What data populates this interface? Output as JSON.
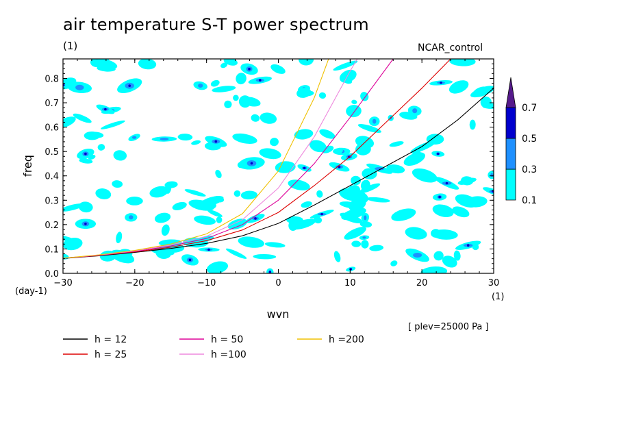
{
  "title": "air temperature S-T power spectrum",
  "units_label": "(1)",
  "dataset_label": "NCAR_control",
  "pressure_label": "[ plev=25000 Pa ]",
  "chart_data": {
    "type": "line",
    "xlabel": "wvn",
    "ylabel": "freq",
    "x_units": "(1)",
    "y_units": "(day-1)",
    "xlim": [
      -30,
      30
    ],
    "ylim": [
      0,
      0.88
    ],
    "x_ticks": [
      -30,
      -20,
      -10,
      0,
      10,
      20,
      30
    ],
    "y_ticks": [
      0.0,
      0.1,
      0.2,
      0.3,
      0.4,
      0.5,
      0.6,
      0.7,
      0.8
    ],
    "series": [
      {
        "name": "h = 12",
        "color": "#000000",
        "x": [
          -30,
          -25,
          -20,
          -15,
          -10,
          -5,
          0,
          5,
          10,
          15,
          20,
          25,
          30
        ],
        "y": [
          0.061,
          0.072,
          0.086,
          0.102,
          0.123,
          0.154,
          0.205,
          0.28,
          0.36,
          0.44,
          0.52,
          0.63,
          0.76
        ]
      },
      {
        "name": "h = 25",
        "color": "#dd0000",
        "x": [
          -30,
          -25,
          -20,
          -15,
          -10,
          -5,
          0,
          5,
          10,
          15,
          20,
          24
        ],
        "y": [
          0.062,
          0.073,
          0.088,
          0.107,
          0.134,
          0.178,
          0.25,
          0.36,
          0.48,
          0.62,
          0.76,
          0.88
        ]
      },
      {
        "name": "h = 50",
        "color": "#dd0099",
        "x": [
          -30,
          -25,
          -20,
          -15,
          -10,
          -5,
          0,
          5,
          10,
          16
        ],
        "y": [
          0.062,
          0.074,
          0.09,
          0.112,
          0.143,
          0.2,
          0.3,
          0.45,
          0.64,
          0.88
        ]
      },
      {
        "name": "h =100",
        "color": "#ee88dd",
        "x": [
          -30,
          -25,
          -20,
          -15,
          -10,
          -5,
          0,
          5,
          10,
          11
        ],
        "y": [
          0.062,
          0.075,
          0.092,
          0.116,
          0.152,
          0.22,
          0.35,
          0.56,
          0.83,
          0.88
        ]
      },
      {
        "name": "h =200",
        "color": "#f0c000",
        "x": [
          -30,
          -25,
          -20,
          -15,
          -10,
          -5,
          0,
          5,
          7
        ],
        "y": [
          0.062,
          0.076,
          0.094,
          0.12,
          0.162,
          0.245,
          0.42,
          0.72,
          0.88
        ]
      }
    ],
    "legend_position": "bottom-left",
    "colorbar": {
      "levels": [
        "0.1",
        "0.3",
        "0.5",
        "0.7"
      ],
      "colors": [
        "#00ffff",
        "#1e90ff",
        "#0000cd",
        "#551a8b"
      ],
      "position": "right"
    },
    "contour_fill": "scattered spectral power patches (0.1-0.3 cyan, 0.3-0.5 blue, >0.5 dark blue)"
  }
}
